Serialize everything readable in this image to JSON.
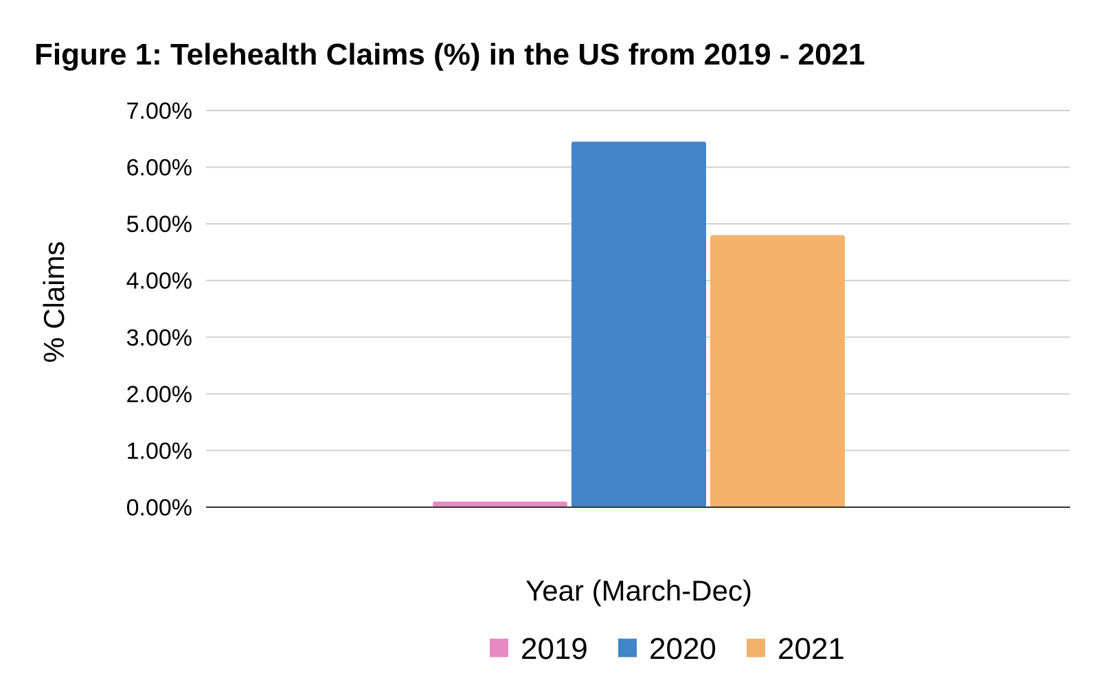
{
  "chart_data": {
    "type": "bar",
    "title": "Figure 1: Telehealth Claims (%) in the US from 2019 - 2021",
    "xlabel": "Year (March-Dec)",
    "ylabel": "% Claims",
    "categories": [
      ""
    ],
    "series": [
      {
        "name": "2019",
        "values": [
          0.1
        ],
        "color": "#e78ac3"
      },
      {
        "name": "2020",
        "values": [
          6.45
        ],
        "color": "#4285c8"
      },
      {
        "name": "2021",
        "values": [
          4.8
        ],
        "color": "#f4b26b"
      }
    ],
    "ylim": [
      0,
      7
    ],
    "yticks": [
      "0.00%",
      "1.00%",
      "2.00%",
      "3.00%",
      "4.00%",
      "5.00%",
      "6.00%",
      "7.00%"
    ],
    "grid": true,
    "legend_position": "bottom"
  }
}
